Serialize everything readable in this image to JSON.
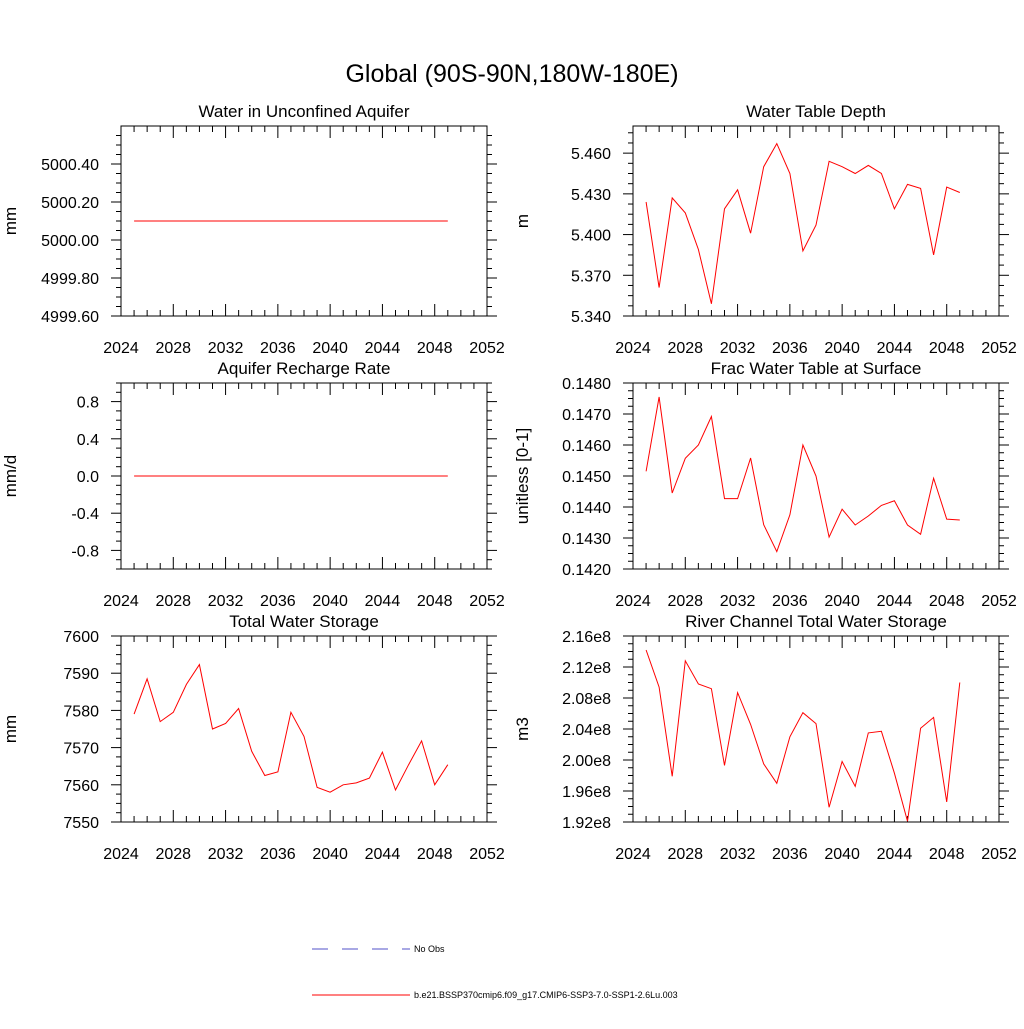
{
  "page_title": "Global (90S-90N,180W-180E)",
  "legend": {
    "entries": [
      {
        "label": "No Obs",
        "color": "#5050c8",
        "style": "dashed"
      },
      {
        "label": "b.e21.BSSP370cmip6.f09_g17.CMIP6-SSP3-7.0-SSP1-2.6Lu.003",
        "color": "#ff0000",
        "style": "solid"
      }
    ]
  },
  "chart_data": [
    {
      "type": "line",
      "title": "Water in Unconfined Aquifer",
      "ylabel": "mm",
      "xlim": [
        2024,
        2052
      ],
      "ylim": [
        4999.6,
        5000.6
      ],
      "xticks": [
        2024,
        2028,
        2032,
        2036,
        2040,
        2044,
        2048,
        2052
      ],
      "xtick_labels": [
        "2024",
        "2028",
        "2032",
        "2036",
        "2040",
        "2044",
        "2048",
        "2052"
      ],
      "yticks": [
        4999.6,
        4999.8,
        5000.0,
        5000.2,
        5000.4
      ],
      "ytick_labels": [
        "4999.60",
        "4999.80",
        "5000.00",
        "5000.20",
        "5000.40"
      ],
      "series": [
        {
          "name": "b.e21.BSSP370cmip6.f09_g17.CMIP6-SSP3-7.0-SSP1-2.6Lu.003",
          "color": "#ff0000",
          "x": [
            2025,
            2026,
            2027,
            2028,
            2029,
            2030,
            2031,
            2032,
            2033,
            2034,
            2035,
            2036,
            2037,
            2038,
            2039,
            2040,
            2041,
            2042,
            2043,
            2044,
            2045,
            2046,
            2047,
            2048,
            2049
          ],
          "y": [
            5000.1,
            5000.1,
            5000.1,
            5000.1,
            5000.1,
            5000.1,
            5000.1,
            5000.1,
            5000.1,
            5000.1,
            5000.1,
            5000.1,
            5000.1,
            5000.1,
            5000.1,
            5000.1,
            5000.1,
            5000.1,
            5000.1,
            5000.1,
            5000.1,
            5000.1,
            5000.1,
            5000.1,
            5000.1
          ]
        }
      ]
    },
    {
      "type": "line",
      "title": "Water Table Depth",
      "ylabel": "m",
      "xlim": [
        2024,
        2052
      ],
      "ylim": [
        5.34,
        5.48
      ],
      "xticks": [
        2024,
        2028,
        2032,
        2036,
        2040,
        2044,
        2048,
        2052
      ],
      "xtick_labels": [
        "2024",
        "2028",
        "2032",
        "2036",
        "2040",
        "2044",
        "2048",
        "2052"
      ],
      "yticks": [
        5.34,
        5.37,
        5.4,
        5.43,
        5.46
      ],
      "ytick_labels": [
        "5.340",
        "5.370",
        "5.400",
        "5.430",
        "5.460"
      ],
      "series": [
        {
          "name": "b.e21.BSSP370cmip6.f09_g17.CMIP6-SSP3-7.0-SSP1-2.6Lu.003",
          "color": "#ff0000",
          "x": [
            2025,
            2026,
            2027,
            2028,
            2029,
            2030,
            2031,
            2032,
            2033,
            2034,
            2035,
            2036,
            2037,
            2038,
            2039,
            2040,
            2041,
            2042,
            2043,
            2044,
            2045,
            2046,
            2047,
            2048,
            2049
          ],
          "y": [
            5.424,
            5.361,
            5.427,
            5.416,
            5.389,
            5.349,
            5.419,
            5.433,
            5.401,
            5.45,
            5.467,
            5.445,
            5.388,
            5.407,
            5.454,
            5.45,
            5.445,
            5.451,
            5.445,
            5.419,
            5.437,
            5.434,
            5.385,
            5.435,
            5.431
          ]
        }
      ]
    },
    {
      "type": "line",
      "title": "Aquifer Recharge Rate",
      "ylabel": "mm/d",
      "xlim": [
        2024,
        2052
      ],
      "ylim": [
        -1.0,
        1.0
      ],
      "xticks": [
        2024,
        2028,
        2032,
        2036,
        2040,
        2044,
        2048,
        2052
      ],
      "xtick_labels": [
        "2024",
        "2028",
        "2032",
        "2036",
        "2040",
        "2044",
        "2048",
        "2052"
      ],
      "yticks": [
        -0.8,
        -0.4,
        0.0,
        0.4,
        0.8
      ],
      "ytick_labels": [
        "-0.8",
        "-0.4",
        "0.0",
        "0.4",
        "0.8"
      ],
      "series": [
        {
          "name": "b.e21.BSSP370cmip6.f09_g17.CMIP6-SSP3-7.0-SSP1-2.6Lu.003",
          "color": "#ff0000",
          "x": [
            2025,
            2026,
            2027,
            2028,
            2029,
            2030,
            2031,
            2032,
            2033,
            2034,
            2035,
            2036,
            2037,
            2038,
            2039,
            2040,
            2041,
            2042,
            2043,
            2044,
            2045,
            2046,
            2047,
            2048,
            2049
          ],
          "y": [
            0,
            0,
            0,
            0,
            0,
            0,
            0,
            0,
            0,
            0,
            0,
            0,
            0,
            0,
            0,
            0,
            0,
            0,
            0,
            0,
            0,
            0,
            0,
            0,
            0
          ]
        }
      ]
    },
    {
      "type": "line",
      "title": "Frac Water Table at Surface",
      "ylabel": "unitless [0-1]",
      "xlim": [
        2024,
        2052
      ],
      "ylim": [
        0.142,
        0.148
      ],
      "xticks": [
        2024,
        2028,
        2032,
        2036,
        2040,
        2044,
        2048,
        2052
      ],
      "xtick_labels": [
        "2024",
        "2028",
        "2032",
        "2036",
        "2040",
        "2044",
        "2048",
        "2052"
      ],
      "yticks": [
        0.142,
        0.143,
        0.144,
        0.145,
        0.146,
        0.147,
        0.148
      ],
      "ytick_labels": [
        "0.1420",
        "0.1430",
        "0.1440",
        "0.1450",
        "0.1460",
        "0.1470",
        "0.1480"
      ],
      "series": [
        {
          "name": "b.e21.BSSP370cmip6.f09_g17.CMIP6-SSP3-7.0-SSP1-2.6Lu.003",
          "color": "#ff0000",
          "x": [
            2025,
            2026,
            2027,
            2028,
            2029,
            2030,
            2031,
            2032,
            2033,
            2034,
            2035,
            2036,
            2037,
            2038,
            2039,
            2040,
            2041,
            2042,
            2043,
            2044,
            2045,
            2046,
            2047,
            2048,
            2049
          ],
          "y": [
            0.14515,
            0.14755,
            0.14445,
            0.14557,
            0.146,
            0.14692,
            0.14427,
            0.14427,
            0.14558,
            0.14343,
            0.14256,
            0.14375,
            0.146,
            0.145,
            0.14303,
            0.14393,
            0.14342,
            0.14371,
            0.14405,
            0.1442,
            0.14342,
            0.14312,
            0.14493,
            0.14361,
            0.14358
          ]
        }
      ]
    },
    {
      "type": "line",
      "title": "Total Water Storage",
      "ylabel": "mm",
      "xlim": [
        2024,
        2052
      ],
      "ylim": [
        7550,
        7600
      ],
      "xticks": [
        2024,
        2028,
        2032,
        2036,
        2040,
        2044,
        2048,
        2052
      ],
      "xtick_labels": [
        "2024",
        "2028",
        "2032",
        "2036",
        "2040",
        "2044",
        "2048",
        "2052"
      ],
      "yticks": [
        7550,
        7560,
        7570,
        7580,
        7590,
        7600
      ],
      "ytick_labels": [
        "7550",
        "7560",
        "7570",
        "7580",
        "7590",
        "7600"
      ],
      "series": [
        {
          "name": "b.e21.BSSP370cmip6.f09_g17.CMIP6-SSP3-7.0-SSP1-2.6Lu.003",
          "color": "#ff0000",
          "x": [
            2025,
            2026,
            2027,
            2028,
            2029,
            2030,
            2031,
            2032,
            2033,
            2034,
            2035,
            2036,
            2037,
            2038,
            2039,
            2040,
            2041,
            2042,
            2043,
            2044,
            2045,
            2046,
            2047,
            2048,
            2049
          ],
          "y": [
            7579,
            7588.5,
            7577,
            7579.5,
            7587,
            7592.3,
            7575,
            7576.5,
            7580.5,
            7569,
            7562.5,
            7563.5,
            7579.5,
            7573,
            7559.3,
            7558,
            7560,
            7560.5,
            7561.8,
            7568.8,
            7558.6,
            7565.4,
            7571.8,
            7560,
            7565.4
          ]
        }
      ]
    },
    {
      "type": "line",
      "title": "River Channel Total Water Storage",
      "ylabel": "m3",
      "xlim": [
        2024,
        2052
      ],
      "ylim": [
        192000000,
        216000000
      ],
      "xticks": [
        2024,
        2028,
        2032,
        2036,
        2040,
        2044,
        2048,
        2052
      ],
      "xtick_labels": [
        "2024",
        "2028",
        "2032",
        "2036",
        "2040",
        "2044",
        "2048",
        "2052"
      ],
      "yticks": [
        192000000,
        196000000,
        200000000,
        204000000,
        208000000,
        212000000,
        216000000
      ],
      "ytick_labels": [
        "1.92e8",
        "1.96e8",
        "2.00e8",
        "2.04e8",
        "2.08e8",
        "2.12e8",
        "2.16e8"
      ],
      "series": [
        {
          "name": "b.e21.BSSP370cmip6.f09_g17.CMIP6-SSP3-7.0-SSP1-2.6Lu.003",
          "color": "#ff0000",
          "x": [
            2025,
            2026,
            2027,
            2028,
            2029,
            2030,
            2031,
            2032,
            2033,
            2034,
            2035,
            2036,
            2037,
            2038,
            2039,
            2040,
            2041,
            2042,
            2043,
            2044,
            2045,
            2046,
            2047,
            2048,
            2049
          ],
          "y": [
            214200000,
            209400000,
            197900000,
            212800000,
            209800000,
            209200000,
            199300000,
            208700000,
            204600000,
            199500000,
            197000000,
            203000000,
            206100000,
            204700000,
            193900000,
            199800000,
            196600000,
            203500000,
            203700000,
            198300000,
            192100000,
            204100000,
            205500000,
            194600000,
            210000000
          ]
        }
      ]
    }
  ]
}
